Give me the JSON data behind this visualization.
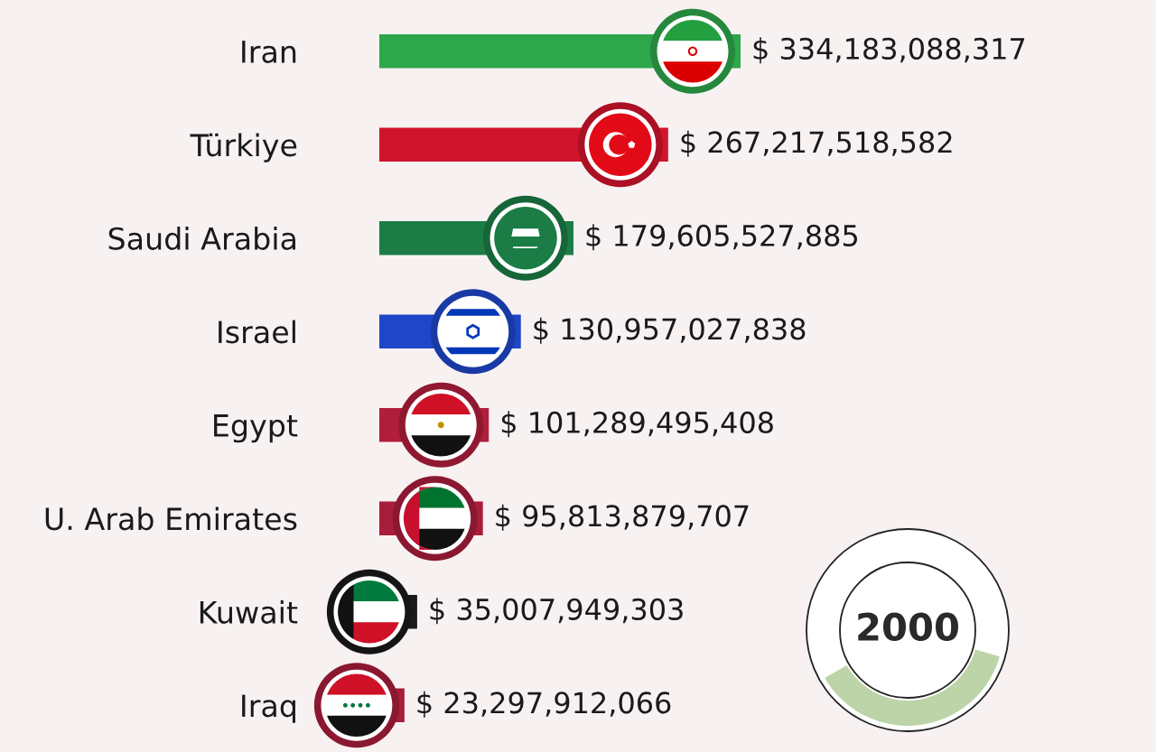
{
  "chart_data": {
    "type": "bar",
    "orientation": "horizontal",
    "categories": [
      "Iran",
      "Türkiye",
      "Saudi Arabia",
      "Israel",
      "Egypt",
      "U. Arab Emirates",
      "Kuwait",
      "Iraq"
    ],
    "values": [
      334183088317,
      267217518582,
      179605527885,
      130957027838,
      101289495408,
      95813879707,
      35007949303,
      23297912066
    ],
    "colors": [
      "#2ea64a",
      "#d0142c",
      "#1b7d45",
      "#1f45c8",
      "#b01e3c",
      "#a81d3a",
      "#1a1a1a",
      "#a81d3a"
    ],
    "value_labels": [
      "$ 334,183,088,317",
      "$ 267,217,518,582",
      "$ 179,605,527,885",
      "$ 130,957,027,838",
      "$ 101,289,495,408",
      "$ 95,813,879,707",
      "$ 35,007,949,303",
      "$ 23,297,912,066"
    ],
    "tick_labels": "y",
    "annotations": [
      "2000"
    ]
  }
}
